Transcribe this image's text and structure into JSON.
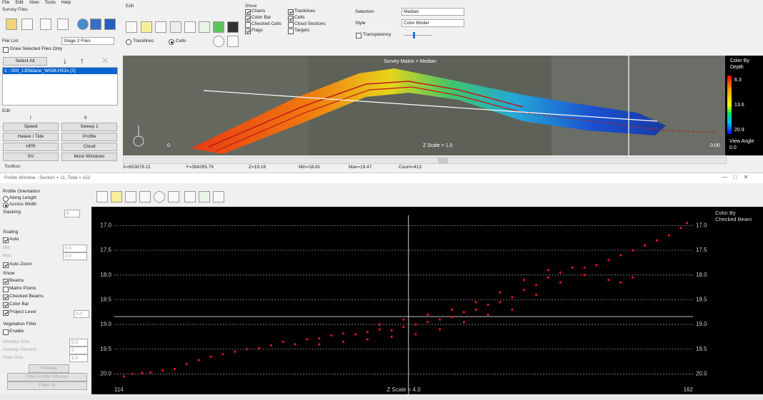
{
  "menu": [
    "File",
    "Edit",
    "View",
    "Tools",
    "Help"
  ],
  "survey_files": {
    "title": "Survey Files",
    "file_list_label": "File List",
    "file_list_value": "Stage 2 Files",
    "draw_selected": {
      "label": "Draw Selected Files Only",
      "checked": false
    },
    "select_all": "Select All",
    "files": [
      "1 - 000_130tidane_WGM.HS2x (2)"
    ]
  },
  "edit_panel": {
    "title": "Edit",
    "col1": "I",
    "col2": "II",
    "buttons": [
      "Speed",
      "Sweep 1",
      "Heave / Tide",
      "Profile",
      "HPR",
      "Cloud",
      "SV",
      "More Windows"
    ]
  },
  "toolbox": "Toolbox",
  "edit_toolbar": {
    "title": "Edit",
    "radios": [
      {
        "label": "Tracklines",
        "checked": false
      },
      {
        "label": "Cells",
        "checked": true
      }
    ]
  },
  "show": {
    "title": "Show",
    "options": [
      {
        "label": "Charts",
        "checked": true
      },
      {
        "label": "Color Bar",
        "checked": true
      },
      {
        "label": "Checked Cells",
        "checked": false
      },
      {
        "label": "Flags",
        "checked": true
      },
      {
        "label": "Tracklines",
        "checked": true
      },
      {
        "label": "Cells",
        "checked": true
      },
      {
        "label": "Cloud Sections",
        "checked": false
      },
      {
        "label": "Targets",
        "checked": false
      }
    ]
  },
  "selection": {
    "label": "Selection",
    "value": "Median",
    "style_label": "Style",
    "style_value": "Color Model",
    "transparency": {
      "label": "Transparency",
      "checked": false
    }
  },
  "plan_view": {
    "matrix_label": "Survey Matrix = Median",
    "z_scale": "Z Scale = 1.0",
    "left_label": "0",
    "right_label": "0.00",
    "colorbar_title": "Color By Depth",
    "colorbar_labels": [
      "6.3",
      "13.6",
      "20.9"
    ],
    "view_angle": "View Angle 0.0"
  },
  "status": [
    "X=653678.21",
    "Y=394265.79",
    "Z=19.18",
    "Min=18.81",
    "Max=19.47",
    "Count=413"
  ],
  "profile_window": {
    "title": "Profile Window - Section = 11, Total = 152",
    "orientation_title": "Profile Orientation",
    "orientation": [
      {
        "label": "Along Length",
        "checked": false
      },
      {
        "label": "Across Width",
        "checked": true
      }
    ],
    "stacking_label": "Stacking",
    "stacking_value": "5",
    "scaling_title": "Scaling",
    "auto": {
      "label": "Auto",
      "checked": true
    },
    "min_label": "Min",
    "min_value": "0.0",
    "max_label": "Max",
    "max_value": "0.0",
    "auto_zoom": {
      "label": "Auto Zoom",
      "checked": true
    },
    "show_title": "Show",
    "show": [
      {
        "label": "Beams",
        "checked": true
      },
      {
        "label": "Matrix Points",
        "checked": false
      },
      {
        "label": "Checked Beams",
        "checked": true
      },
      {
        "label": "Color Bar",
        "checked": true
      },
      {
        "label": "Project Level",
        "checked": true
      }
    ],
    "project_level_value": "0.0",
    "vegetation_title": "Vegetation Filter",
    "enable": {
      "label": "Enable",
      "checked": false
    },
    "window_size_label": "Window Size",
    "window_size_value": "5.0",
    "overlap_label": "Overlap Percent",
    "overlap_value": "0",
    "gate_size_label": "Gate Size",
    "gate_size_value": "1.0",
    "buttons": [
      "Preview",
      "Filter Profile Window",
      "Filter All"
    ]
  },
  "chart_data": {
    "type": "scatter",
    "color": "#e0141a",
    "xlim": [
      114,
      162
    ],
    "ylim": [
      16.62,
      20.34
    ],
    "y_inverted": true,
    "xticks": [
      114,
      162
    ],
    "yticks": [
      {
        "value": 17,
        "label": "17.0"
      },
      17.5,
      {
        "value": 18,
        "label": "18.0"
      },
      18.5,
      {
        "value": 19,
        "label": "19.0"
      },
      19.5,
      {
        "value": 20,
        "label": "20.0"
      }
    ],
    "grid": true,
    "reference_y": 18.84,
    "cursor_x": 138.4,
    "annotation": "Z Scale = 4.0",
    "colorbar_title": "Color By Checked Beam",
    "x": [
      114.8,
      115.5,
      116.3,
      117,
      118,
      119,
      120,
      121,
      122,
      123,
      124,
      125,
      126,
      127,
      128,
      129,
      130,
      131,
      132,
      133,
      134,
      135,
      136,
      137,
      138,
      139,
      140,
      141,
      142,
      143,
      144,
      145,
      146,
      147,
      148,
      149,
      150,
      151,
      152,
      153,
      154,
      155,
      156,
      157,
      158,
      159,
      160,
      161,
      161.5,
      131,
      133,
      135,
      137,
      139,
      141,
      143,
      145,
      147,
      149,
      151,
      153,
      148,
      150,
      155,
      156,
      157,
      136,
      138,
      140,
      142,
      144,
      146
    ],
    "y": [
      20.05,
      20.0,
      19.98,
      19.97,
      19.93,
      19.9,
      19.8,
      19.72,
      19.65,
      19.6,
      19.55,
      19.5,
      19.48,
      19.42,
      19.35,
      19.4,
      19.3,
      19.28,
      19.22,
      19.18,
      19.2,
      19.15,
      19.1,
      19.12,
      19.05,
      19.0,
      18.95,
      18.9,
      18.85,
      18.75,
      18.7,
      18.6,
      18.55,
      18.45,
      18.3,
      18.2,
      18.05,
      17.95,
      17.85,
      17.85,
      17.8,
      17.7,
      17.6,
      17.5,
      17.4,
      17.3,
      17.2,
      17.05,
      16.95,
      19.4,
      19.35,
      19.3,
      19.25,
      19.2,
      19.1,
      18.95,
      18.8,
      18.7,
      18.4,
      18.15,
      18.0,
      18.1,
      17.9,
      18.1,
      18.15,
      18.05,
      19.0,
      18.9,
      18.8,
      18.7,
      18.55,
      18.35
    ]
  }
}
